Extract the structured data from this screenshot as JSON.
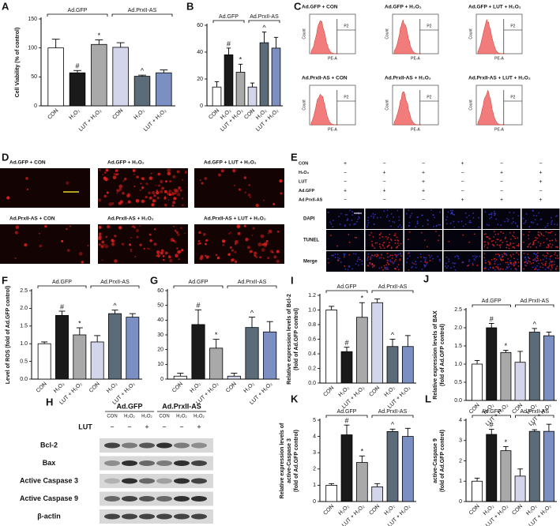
{
  "chart_data": [
    {
      "type": "bar",
      "panel": "A",
      "y_label": [
        "Cell Viability (% of control)"
      ],
      "groups": [
        "Ad.GFP",
        "Ad.PrxII-AS"
      ],
      "categories": [
        "CON",
        "H₂O₂",
        "LUT + H₂O₂",
        "CON",
        "H₂O₂",
        "LUT + H₂O₂"
      ],
      "values": [
        100,
        57,
        106,
        101,
        51,
        57
      ],
      "errors": [
        15,
        4,
        8,
        8,
        2,
        5
      ],
      "colors": [
        "#ffffff",
        "#1a1a1a",
        "#a9a9a9",
        "#d3d6ea",
        "#5b6b78",
        "#7b8fc2"
      ],
      "markers": [
        null,
        "#",
        "*",
        null,
        "^",
        null
      ],
      "ylim": [
        0,
        150
      ],
      "yticks": [
        0,
        50,
        100,
        150
      ]
    },
    {
      "type": "bar",
      "panel": "B",
      "groups": [
        "Ad.GFP",
        "Ad.PrxII-AS"
      ],
      "categories": [
        "CON",
        "H₂O₂",
        "LUT + H₂O₂",
        "CON",
        "H₂O₂",
        "LUT + H₂O₂"
      ],
      "values": [
        14,
        38,
        25,
        14,
        47,
        43
      ],
      "errors": [
        4,
        5,
        6,
        3,
        8,
        8
      ],
      "colors": [
        "#ffffff",
        "#1a1a1a",
        "#a9a9a9",
        "#d3d6ea",
        "#5b6b78",
        "#7b8fc2"
      ],
      "markers": [
        null,
        "#",
        "*",
        null,
        "^",
        null
      ],
      "ylim": [
        0,
        60
      ],
      "yticks": [
        0,
        20,
        40,
        60
      ]
    },
    {
      "type": "bar",
      "panel": "F",
      "y_label": [
        "Level of ROS (fold of Ad.GFP control)"
      ],
      "groups": [
        "Ad.GFP",
        "Ad.PrxII-AS"
      ],
      "categories": [
        "CON",
        "H₂O₂",
        "LUT + H₂O₂",
        "CON",
        "H₂O₂",
        "LUT + H₂O₂"
      ],
      "values": [
        1.0,
        1.8,
        1.25,
        1.05,
        1.85,
        1.75
      ],
      "errors": [
        0.05,
        0.12,
        0.2,
        0.18,
        0.1,
        0.1
      ],
      "colors": [
        "#ffffff",
        "#1a1a1a",
        "#a9a9a9",
        "#d3d6ea",
        "#5b6b78",
        "#7b8fc2"
      ],
      "markers": [
        null,
        "#",
        "*",
        null,
        "^",
        null
      ],
      "ylim": [
        0,
        2.5
      ],
      "yticks": [
        {
          "value": 0,
          "label": "0.0"
        },
        0.5,
        {
          "value": 1,
          "label": "1.0"
        },
        1.5,
        {
          "value": 2,
          "label": "2.0"
        },
        2.5
      ]
    },
    {
      "type": "bar",
      "panel": "G",
      "groups": [
        "Ad.GFP",
        "Ad.PrxII-AS"
      ],
      "categories": [
        "CON",
        "H₂O₂",
        "LUT + H₂O₂",
        "CON",
        "H₂O₂",
        "LUT + H₂O₂"
      ],
      "values": [
        2,
        37,
        21,
        2,
        35,
        32
      ],
      "errors": [
        2,
        10,
        6,
        2,
        7,
        7
      ],
      "colors": [
        "#ffffff",
        "#1a1a1a",
        "#a9a9a9",
        "#d3d6ea",
        "#5b6b78",
        "#7b8fc2"
      ],
      "markers": [
        null,
        "#",
        "*",
        null,
        "^",
        null
      ],
      "ylim": [
        0,
        60
      ],
      "yticks": [
        0,
        10,
        20,
        30,
        40,
        50,
        60
      ]
    },
    {
      "type": "bar",
      "panel": "I",
      "y_label": [
        "Relative expression levels of Bcl-2",
        "(fold of Ad.GFP control)"
      ],
      "groups": [
        "Ad.GFP",
        "Ad.PrxII-AS"
      ],
      "categories": [
        "CON",
        "H₂O₂",
        "LUT + H₂O₂",
        "CON",
        "H₂O₂",
        "LUT + H₂O₂"
      ],
      "values": [
        1.0,
        0.43,
        0.9,
        1.1,
        0.5,
        0.5
      ],
      "errors": [
        0.05,
        0.06,
        0.2,
        0.05,
        0.1,
        0.15
      ],
      "colors": [
        "#ffffff",
        "#1a1a1a",
        "#a9a9a9",
        "#d3d6ea",
        "#5b6b78",
        "#7b8fc2"
      ],
      "markers": [
        null,
        "#",
        "*",
        null,
        "^",
        null
      ],
      "ylim": [
        0,
        1.2
      ],
      "yticks": [
        {
          "value": 0,
          "label": "0.0"
        },
        0.2,
        0.4,
        0.6,
        0.8,
        {
          "value": 1,
          "label": "1.0"
        },
        1.2
      ]
    },
    {
      "type": "bar",
      "panel": "J",
      "y_label": [
        "Relative expression levels of BAX",
        "(fold of Ad.GFP control)"
      ],
      "groups": [
        "Ad.GFP",
        "Ad.PrxII-AS"
      ],
      "categories": [
        "CON",
        "H₂O₂",
        "LUT + H₂O₂",
        "CON",
        "H₂O₂",
        "LUT + H₂O₂"
      ],
      "values": [
        1.0,
        2.0,
        1.32,
        1.05,
        1.88,
        1.78
      ],
      "errors": [
        0.1,
        0.12,
        0.06,
        0.3,
        0.1,
        0.1
      ],
      "colors": [
        "#ffffff",
        "#1a1a1a",
        "#a9a9a9",
        "#d3d6ea",
        "#5b6b78",
        "#7b8fc2"
      ],
      "markers": [
        null,
        "#",
        "*",
        null,
        "^",
        null
      ],
      "ylim": [
        0,
        2.5
      ],
      "yticks": [
        {
          "value": 0,
          "label": "0.0"
        },
        0.5,
        {
          "value": 1,
          "label": "1.0"
        },
        1.5,
        {
          "value": 2,
          "label": "2.0"
        },
        2.5
      ]
    },
    {
      "type": "bar",
      "panel": "K",
      "y_label": [
        "Relative expression levels of",
        "active-Caspase 3",
        "(fold of Ad.GFP control)"
      ],
      "groups": [
        "Ad.GFP",
        "Ad.PrxII-AS"
      ],
      "categories": [
        "CON",
        "H₂O₂",
        "LUT + H₂O₂",
        "CON",
        "H₂O₂",
        "LUT + H₂O₂"
      ],
      "values": [
        1.0,
        4.1,
        2.4,
        0.9,
        4.3,
        4.0
      ],
      "errors": [
        0.1,
        0.6,
        0.4,
        0.2,
        0.15,
        0.5
      ],
      "colors": [
        "#ffffff",
        "#1a1a1a",
        "#a9a9a9",
        "#d3d6ea",
        "#5b6b78",
        "#7b8fc2"
      ],
      "markers": [
        null,
        "#",
        "*",
        null,
        "^",
        null
      ],
      "ylim": [
        0,
        5
      ],
      "yticks": [
        0,
        1,
        2,
        3,
        4,
        5
      ]
    },
    {
      "type": "bar",
      "panel": "L",
      "y_label": [
        "active-Caspase 9",
        "(fold of Ad.GFP control)"
      ],
      "groups": [
        "Ad.GFP",
        "Ad.PrxII-AS"
      ],
      "categories": [
        "CON",
        "H₂O₂",
        "LUT + H₂O₂",
        "CON",
        "H₂O₂",
        "LUT + H₂O₂"
      ],
      "values": [
        1.0,
        3.3,
        2.5,
        1.25,
        3.45,
        3.45
      ],
      "errors": [
        0.15,
        0.25,
        0.2,
        0.35,
        0.08,
        0.35
      ],
      "colors": [
        "#ffffff",
        "#1a1a1a",
        "#a9a9a9",
        "#d3d6ea",
        "#5b6b78",
        "#7b8fc2"
      ],
      "markers": [
        null,
        "#",
        "*",
        null,
        "^",
        null
      ],
      "ylim": [
        0,
        4
      ],
      "yticks": [
        0,
        1,
        2,
        3,
        4
      ]
    }
  ],
  "flow": {
    "panel": "C",
    "titles": [
      "Ad.GFP + CON",
      "Ad.GFP + H₂O₂",
      "Ad.GFP + LUT + H₂O₂",
      "Ad.PrxII-AS + CON",
      "Ad.PrxII-AS + H₂O₂",
      "Ad.PrxII-AS + LUT + H₂O₂"
    ],
    "y_label": "Count",
    "x_label": "PE-A",
    "gate": "P2"
  },
  "microscopy": {
    "panel": "D",
    "titles": [
      "Ad.GFP + CON",
      "Ad.GFP + H₂O₂",
      "Ad.GFP + LUT + H₂O₂",
      "Ad.PrxII-AS + CON",
      "Ad.PrxII-AS + H₂O₂",
      "Ad.PrxII-AS + LUT + H₂O₂"
    ]
  },
  "tunel": {
    "panel": "E",
    "conditions": [
      "CON",
      "H₂O₂",
      "LUT",
      "Ad.GFP",
      "Ad.PrxII-AS"
    ],
    "matrix": [
      [
        "+",
        "−",
        "−",
        "+",
        "−",
        "−"
      ],
      [
        "−",
        "+",
        "+",
        "−",
        "+",
        "+"
      ],
      [
        "−",
        "−",
        "+",
        "−",
        "−",
        "+"
      ],
      [
        "+",
        "+",
        "+",
        "−",
        "−",
        "−"
      ],
      [
        "−",
        "−",
        "−",
        "+",
        "+",
        "+"
      ]
    ],
    "stains": [
      "DAPI",
      "TUNEL",
      "Merge"
    ]
  },
  "western": {
    "panel": "H",
    "groups": [
      "Ad.GFP",
      "Ad.PrxII-AS"
    ],
    "lanes": [
      "CON",
      "H₂O₂",
      "H₂O₂",
      "CON",
      "H₂O₂",
      "H₂O₂"
    ],
    "lut_label": "LUT",
    "lut": [
      "−",
      "−",
      "+",
      "−",
      "−",
      "+"
    ],
    "proteins": [
      "Bcl-2",
      "Bax",
      "Active Caspase 3",
      "Active Caspase 9",
      "β-actin"
    ]
  }
}
